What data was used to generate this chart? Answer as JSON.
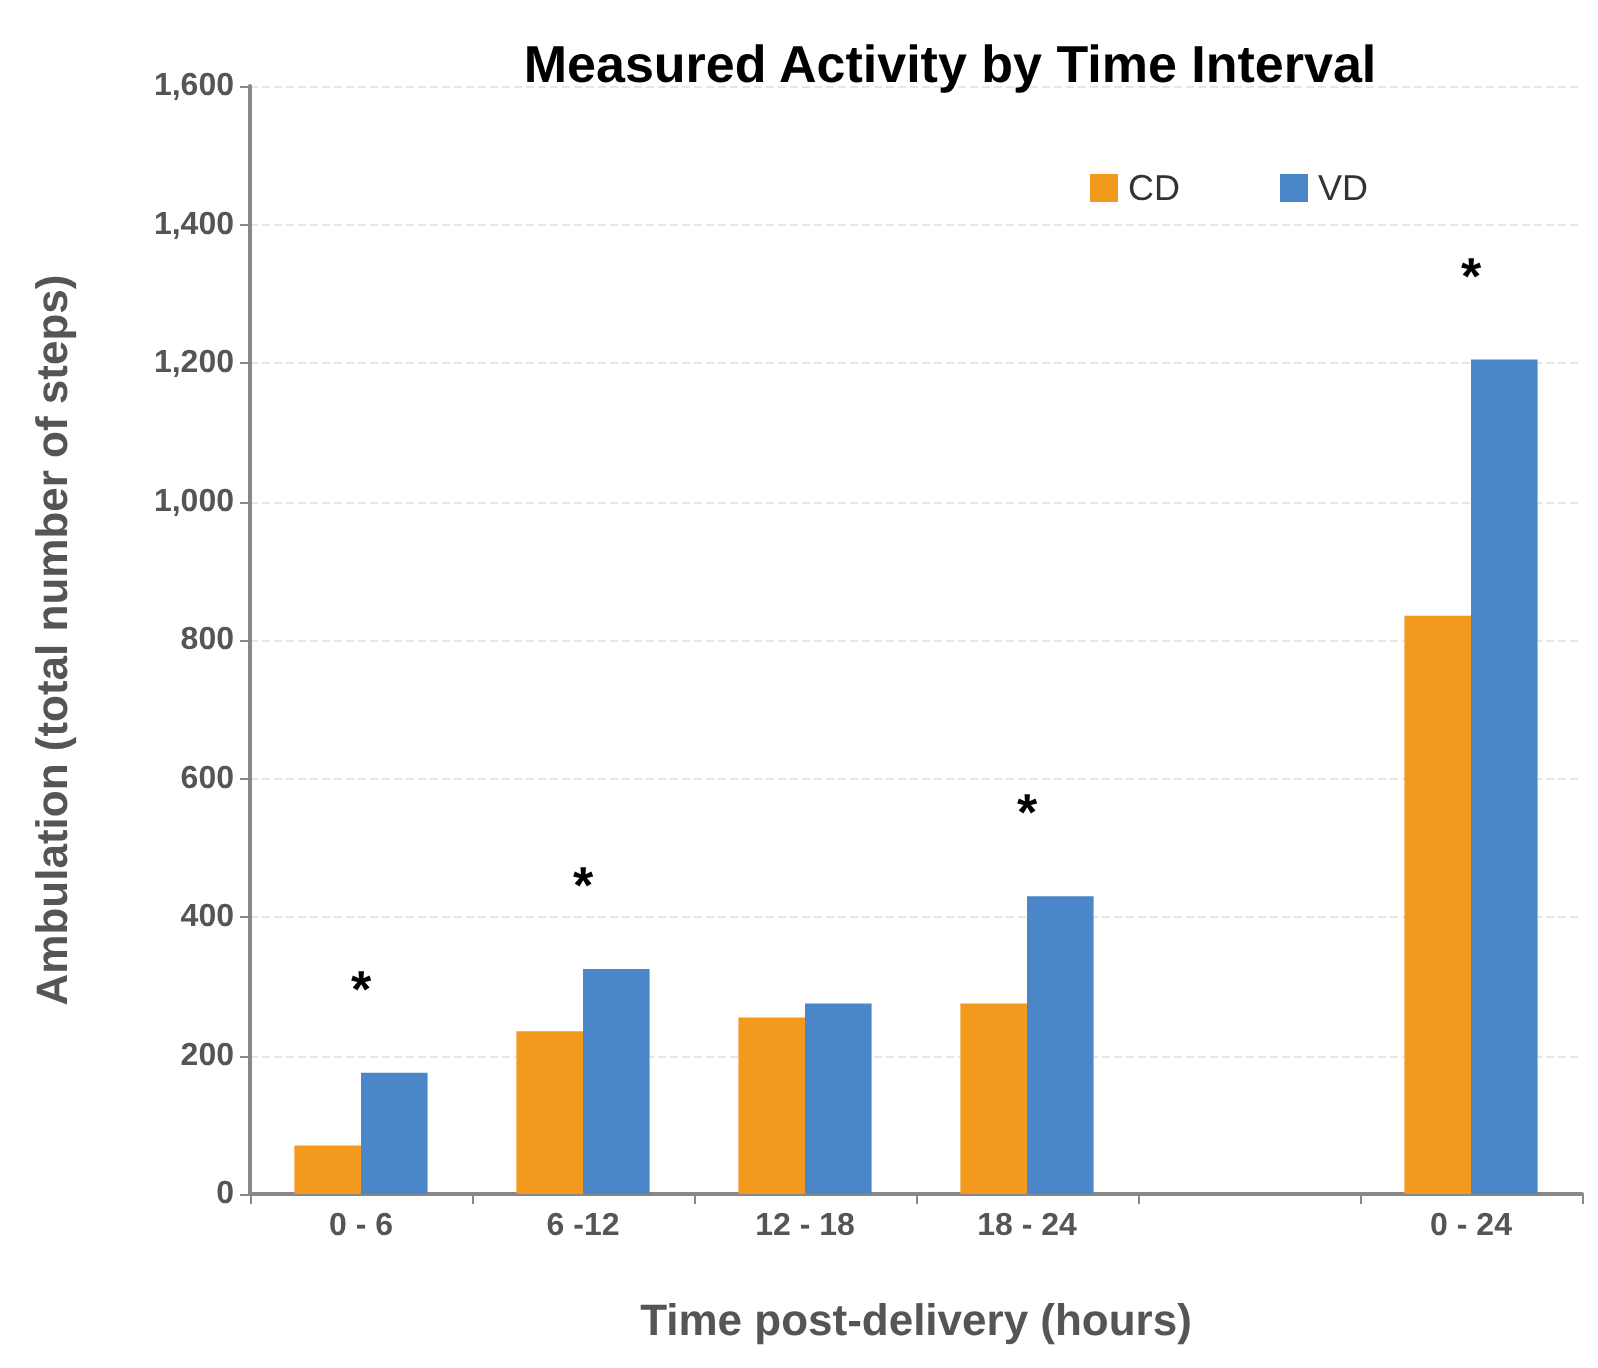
{
  "chart_data": {
    "type": "bar",
    "title": "Measured Activity by Time Interval",
    "xlabel": "Time post-delivery (hours)",
    "ylabel": "Ambulation (total number of steps)",
    "categories": [
      "0 - 6",
      "6 -12",
      "12 - 18",
      "18 - 24",
      null,
      "0 - 24"
    ],
    "series": [
      {
        "name": "CD",
        "color": "#f39a1e",
        "values": [
          70,
          235,
          255,
          275,
          null,
          835
        ]
      },
      {
        "name": "VD",
        "color": "#4a86c8",
        "values": [
          175,
          325,
          275,
          430,
          null,
          1205
        ]
      }
    ],
    "ylim": [
      0,
      1600
    ],
    "yticks": [
      0,
      200,
      400,
      600,
      800,
      {
        "value": 1000,
        "label": "1,000"
      },
      {
        "value": 1200,
        "label": "1,200"
      },
      {
        "value": 1400,
        "label": "1,400"
      },
      {
        "value": 1600,
        "label": "1,600"
      }
    ],
    "grid": "y",
    "legend": "top right",
    "annotations": [
      "*",
      "*",
      "*",
      "*"
    ]
  }
}
